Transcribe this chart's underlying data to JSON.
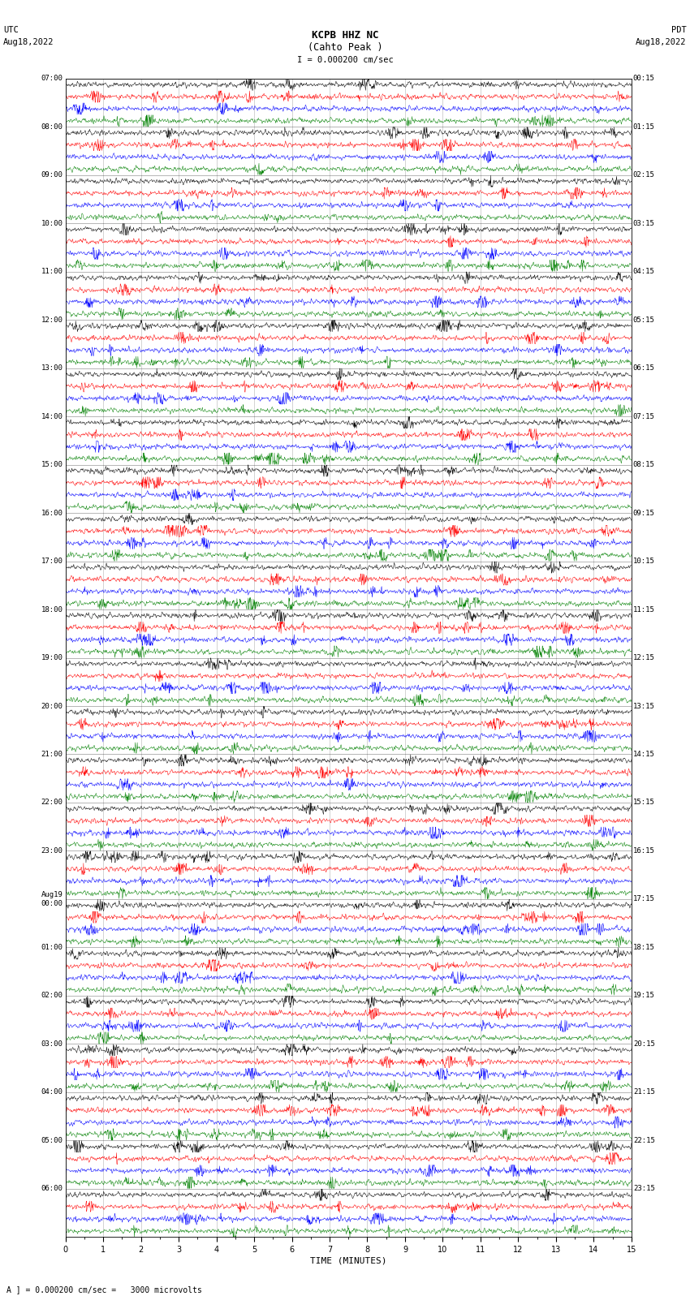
{
  "title_line1": "KCPB HHZ NC",
  "title_line2": "(Cahto Peak )",
  "title_line3": "I = 0.000200 cm/sec",
  "left_header_line1": "UTC",
  "left_header_line2": "Aug18,2022",
  "right_header_line1": "PDT",
  "right_header_line2": "Aug18,2022",
  "xlabel": "TIME (MINUTES)",
  "footer_text": "A ] = 0.000200 cm/sec =   3000 microvolts",
  "utc_labels": [
    "07:00",
    "08:00",
    "09:00",
    "10:00",
    "11:00",
    "12:00",
    "13:00",
    "14:00",
    "15:00",
    "16:00",
    "17:00",
    "18:00",
    "19:00",
    "20:00",
    "21:00",
    "22:00",
    "23:00",
    "Aug19\n00:00",
    "01:00",
    "02:00",
    "03:00",
    "04:00",
    "05:00",
    "06:00"
  ],
  "pdt_labels": [
    "00:15",
    "01:15",
    "02:15",
    "03:15",
    "04:15",
    "05:15",
    "06:15",
    "07:15",
    "08:15",
    "09:15",
    "10:15",
    "11:15",
    "12:15",
    "13:15",
    "14:15",
    "15:15",
    "16:15",
    "17:15",
    "18:15",
    "19:15",
    "20:15",
    "21:15",
    "22:15",
    "23:15"
  ],
  "colors": [
    "black",
    "red",
    "blue",
    "green"
  ],
  "num_groups": 24,
  "traces_per_group": 4,
  "time_minutes": 15,
  "background": "white",
  "fig_width": 8.5,
  "fig_height": 16.13,
  "dpi": 100
}
